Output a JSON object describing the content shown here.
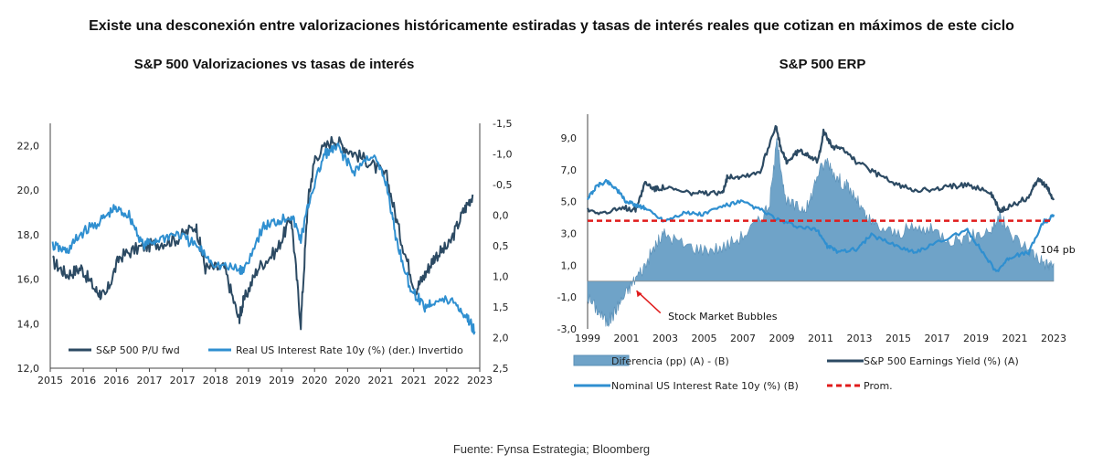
{
  "headline": "Existe una desconexión entre valorizaciones históricamente estiradas y tasas de interés reales que cotizan en máximos de este ciclo",
  "source": "Fuente: Fynsa Estrategia; Bloomberg",
  "colors": {
    "dark_navy": "#2c4a63",
    "light_blue": "#2f8fd0",
    "area_fill": "#6fa3c8",
    "red": "#e01b1b"
  },
  "chart_data": [
    {
      "type": "line",
      "title": "S&P 500 Valorizaciones vs tasas de interés",
      "x_ticks": [
        "2015",
        "2016",
        "2016",
        "2017",
        "2017",
        "2018",
        "2019",
        "2019",
        "2020",
        "2020",
        "2021",
        "2021",
        "2022",
        "2023"
      ],
      "y_left_ticks": [
        "12,0",
        "14,0",
        "16,0",
        "18,0",
        "20,0",
        "22,0"
      ],
      "y_right_ticks": [
        "-1,5",
        "-1,0",
        "-0,5",
        "0,0",
        "0,5",
        "1,0",
        "1,5",
        "2,0",
        "2,5"
      ],
      "ylim_left": [
        12,
        23
      ],
      "ylim_right_inverted": [
        -1.5,
        2.5
      ],
      "grid": false,
      "legend_position": "bottom",
      "series": [
        {
          "name": "S&P 500 P/U fwd",
          "axis": "left",
          "color": "#2c4a63",
          "x": [
            2015.0,
            2015.3,
            2015.6,
            2015.9,
            2016.1,
            2016.4,
            2016.8,
            2017.2,
            2017.6,
            2018.0,
            2018.2,
            2018.6,
            2018.9,
            2019.0,
            2019.3,
            2019.7,
            2020.0,
            2020.2,
            2020.35,
            2020.5,
            2020.9,
            2021.2,
            2021.6,
            2022.0,
            2022.3,
            2022.6,
            2022.8,
            2023.0,
            2023.3,
            2023.6,
            2023.8
          ],
          "y": [
            16.8,
            16.2,
            16.5,
            15.5,
            15.2,
            17.0,
            17.4,
            17.6,
            17.8,
            18.4,
            16.5,
            16.5,
            14.2,
            15.0,
            16.5,
            17.3,
            18.8,
            14.0,
            19.5,
            21.5,
            22.3,
            21.8,
            21.3,
            20.6,
            17.8,
            15.5,
            16.2,
            17.0,
            17.5,
            19.0,
            19.8
          ]
        },
        {
          "name": "Real US Interest Rate 10y (%) (der.) Invertido",
          "axis": "right",
          "color": "#2f8fd0",
          "x": [
            2015.0,
            2015.3,
            2015.6,
            2016.0,
            2016.3,
            2016.6,
            2016.9,
            2017.2,
            2017.6,
            2018.0,
            2018.4,
            2018.9,
            2019.0,
            2019.4,
            2019.7,
            2020.0,
            2020.2,
            2020.4,
            2020.7,
            2021.0,
            2021.3,
            2021.7,
            2022.0,
            2022.2,
            2022.5,
            2022.8,
            2023.0,
            2023.4,
            2023.7,
            2023.85
          ],
          "y": [
            0.5,
            0.6,
            0.3,
            0.1,
            -0.1,
            0.0,
            0.5,
            0.4,
            0.3,
            0.5,
            0.8,
            0.9,
            0.9,
            0.2,
            0.1,
            0.0,
            0.4,
            -0.3,
            -1.0,
            -1.1,
            -0.7,
            -1.0,
            -0.5,
            0.4,
            1.2,
            1.5,
            1.4,
            1.4,
            1.7,
            1.9
          ]
        }
      ]
    },
    {
      "type": "area",
      "title": "S&P 500 ERP",
      "x_ticks": [
        "1999",
        "2001",
        "2003",
        "2005",
        "2007",
        "2009",
        "2011",
        "2013",
        "2015",
        "2017",
        "2019",
        "2021",
        "2023"
      ],
      "y_ticks": [
        "-3,0",
        "-1,0",
        "1,0",
        "3,0",
        "5,0",
        "7,0",
        "9,0"
      ],
      "ylim": [
        -3,
        10.5
      ],
      "grid": false,
      "legend_position": "bottom",
      "series": [
        {
          "name": "Diferencia (pp) (A) - (B)",
          "style": "area",
          "color": "#6fa3c8",
          "x": [
            1999,
            1999.5,
            2000,
            2000.3,
            2000.6,
            2001,
            2001.5,
            2002,
            2002.5,
            2003,
            2004,
            2005,
            2006,
            2007,
            2008,
            2008.5,
            2008.9,
            2009.3,
            2010,
            2010.5,
            2011,
            2011.5,
            2012,
            2012.5,
            2013,
            2013.5,
            2014,
            2015,
            2016,
            2017,
            2018,
            2019,
            2020,
            2020.5,
            2021,
            2022,
            2022.5,
            2023,
            2023.3
          ],
          "y": [
            -1.0,
            -1.8,
            -2.6,
            -2.2,
            -1.5,
            -0.8,
            0.2,
            1.0,
            2.2,
            3.0,
            2.3,
            2.0,
            2.1,
            2.8,
            3.8,
            5.0,
            9.1,
            5.0,
            4.6,
            4.7,
            6.8,
            7.6,
            6.5,
            6.0,
            5.2,
            4.0,
            3.5,
            3.0,
            3.3,
            3.2,
            2.6,
            2.8,
            3.2,
            4.1,
            3.0,
            2.0,
            1.5,
            1.0,
            1.1
          ]
        },
        {
          "name": "S&P 500 Earnings Yield (%) (A)",
          "style": "line",
          "color": "#2c4a63",
          "x": [
            1999,
            2000,
            2001,
            2001.5,
            2002,
            2002.5,
            2003,
            2004,
            2005,
            2006,
            2006.3,
            2007,
            2008,
            2008.8,
            2009.1,
            2009.4,
            2010,
            2010.5,
            2011,
            2011.3,
            2011.8,
            2012.5,
            2013,
            2014,
            2015,
            2016,
            2017,
            2018,
            2019,
            2020,
            2020.5,
            2021,
            2022,
            2022.5,
            2023,
            2023.3
          ],
          "y": [
            4.5,
            4.3,
            4.6,
            4.5,
            6.2,
            5.8,
            5.9,
            5.6,
            5.5,
            5.5,
            6.6,
            6.6,
            6.9,
            9.8,
            8.2,
            7.5,
            8.2,
            8.0,
            7.5,
            9.4,
            8.4,
            8.2,
            7.5,
            6.8,
            6.1,
            5.8,
            5.7,
            6.0,
            6.0,
            5.6,
            4.4,
            4.7,
            5.3,
            6.5,
            5.8,
            5.1
          ]
        },
        {
          "name": "Nominal US Interest Rate 10y (%) (B)",
          "style": "line",
          "color": "#2f8fd0",
          "x": [
            1999,
            1999.5,
            2000,
            2000.5,
            2001,
            2001.5,
            2002,
            2003,
            2004,
            2005,
            2006,
            2007,
            2008,
            2009,
            2010,
            2011,
            2011.5,
            2012,
            2013,
            2013.8,
            2015,
            2016,
            2017,
            2018.8,
            2019.5,
            2020.3,
            2021,
            2022,
            2022.8,
            2023,
            2023.3
          ],
          "y": [
            5.2,
            6.0,
            6.3,
            5.8,
            5.0,
            4.8,
            4.6,
            3.8,
            4.3,
            4.2,
            4.7,
            5.0,
            4.5,
            3.8,
            3.4,
            3.2,
            2.2,
            1.9,
            2.0,
            2.9,
            2.3,
            1.8,
            2.3,
            3.2,
            2.0,
            0.6,
            1.5,
            1.8,
            3.8,
            3.8,
            4.2
          ]
        },
        {
          "name": "Prom.",
          "style": "dashed",
          "color": "#e01b1b",
          "value": 3.8
        }
      ],
      "annotations": [
        {
          "text": "Stock Market  Bubbles",
          "x": 2001.8,
          "y": -1.2
        },
        {
          "text": "104 pb",
          "x": 2022.6,
          "y": 2.0
        }
      ]
    }
  ]
}
